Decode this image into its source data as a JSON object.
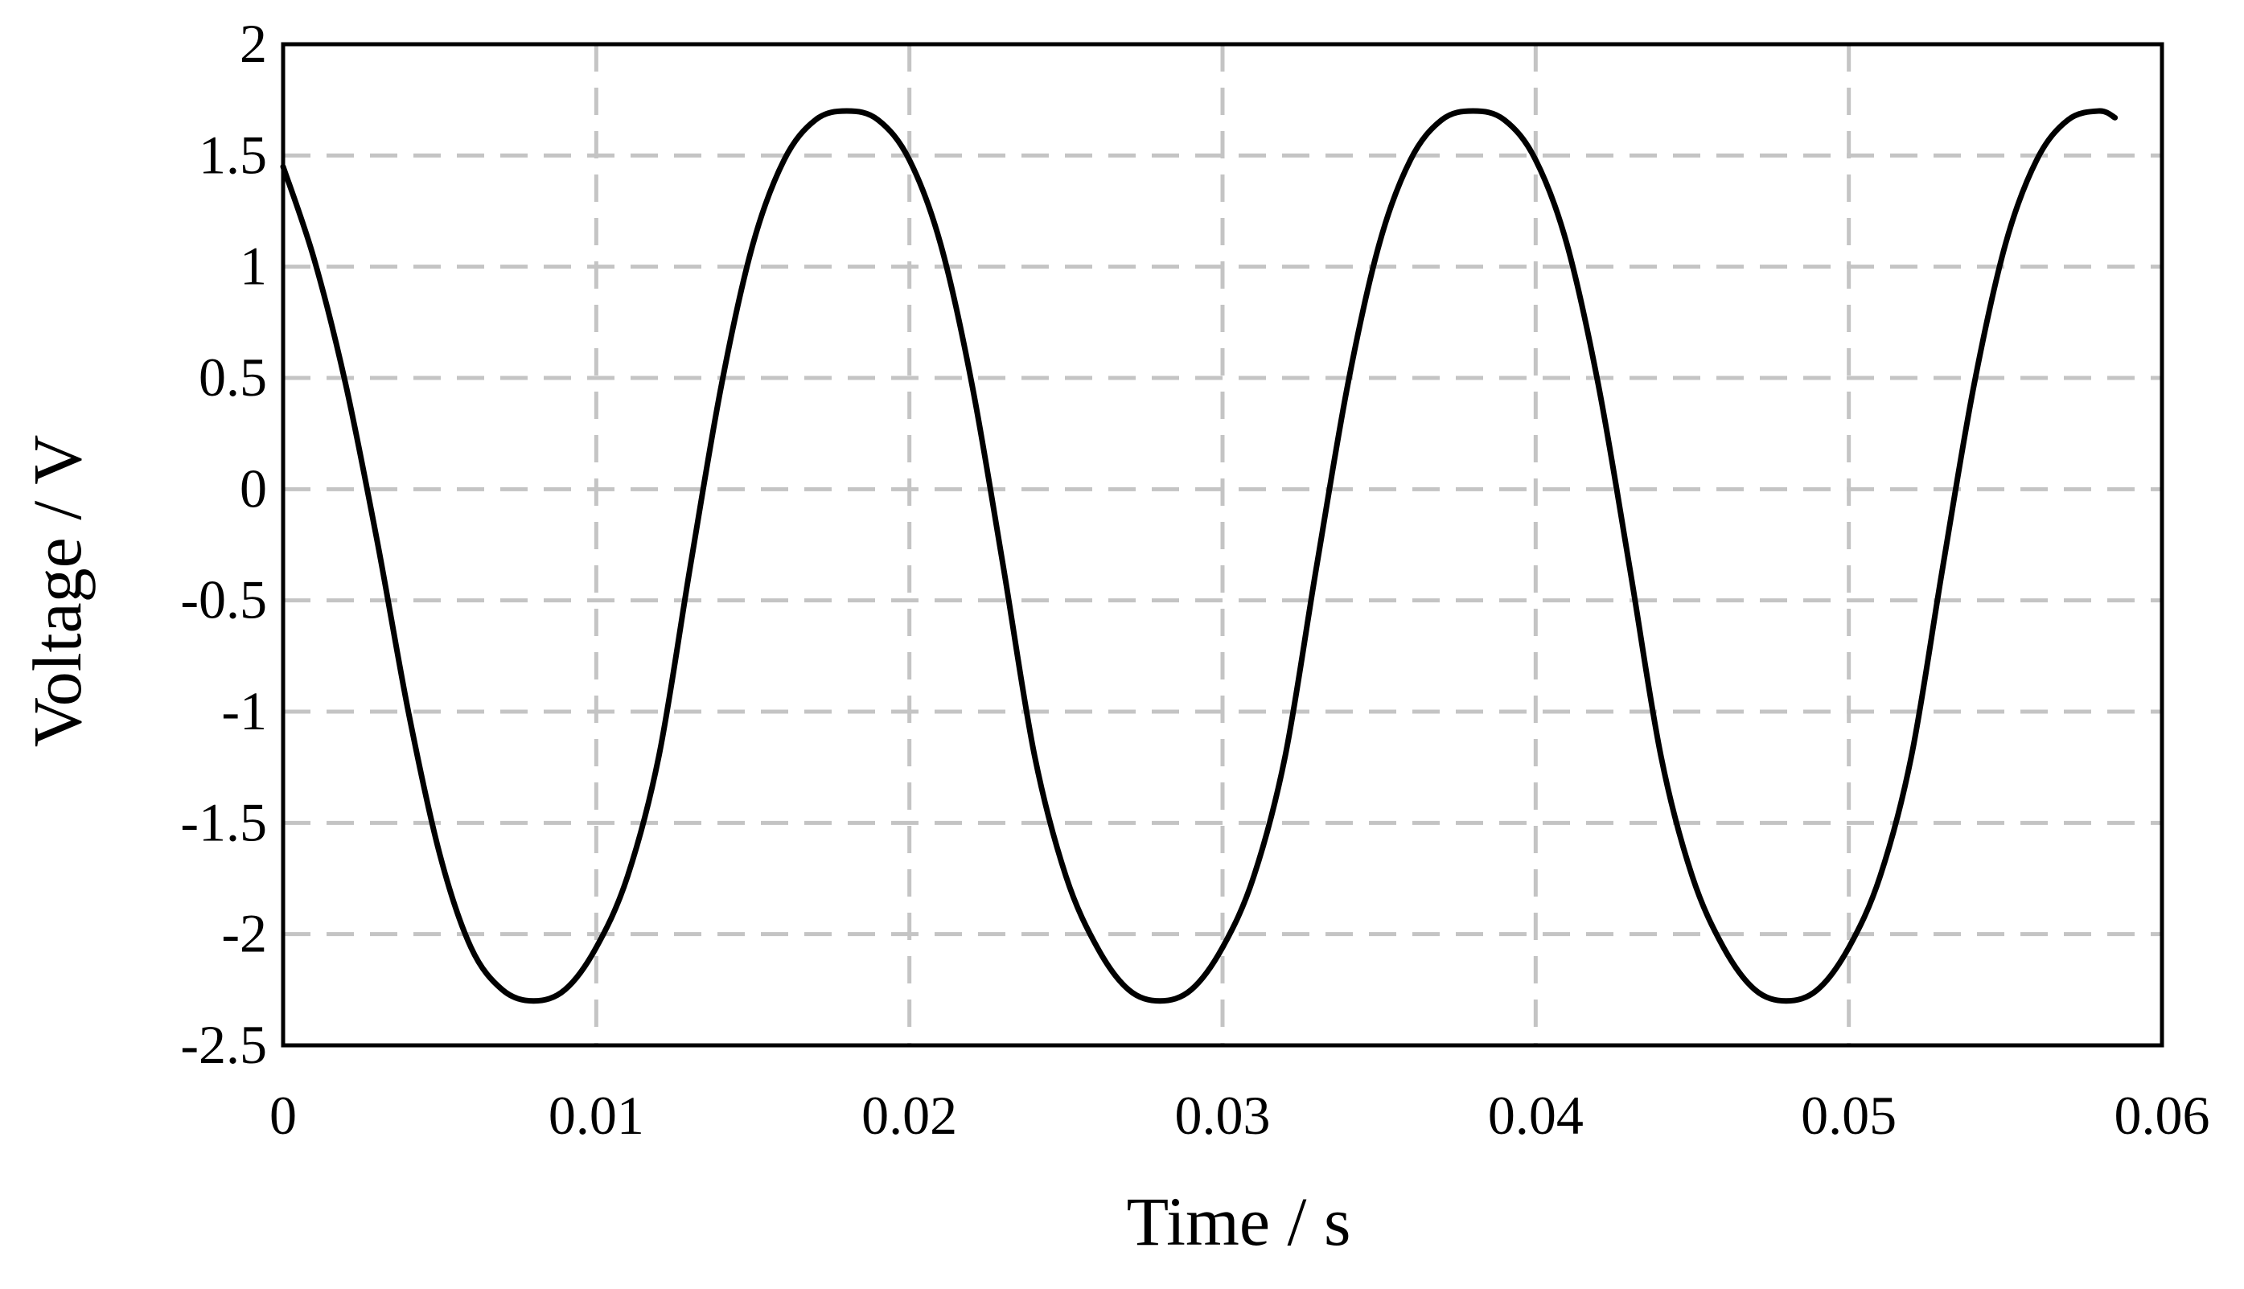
{
  "chart_data": {
    "type": "line",
    "title": "",
    "xlabel": "Time / s",
    "ylabel": "Voltage / V",
    "xlim": [
      0,
      0.06
    ],
    "ylim": [
      -2.5,
      2
    ],
    "xticks": [
      0,
      0.01,
      0.02,
      0.03,
      0.04,
      0.05,
      0.06
    ],
    "xtick_labels": [
      "0",
      "0.01",
      "0.02",
      "0.03",
      "0.04",
      "0.05",
      "0.06"
    ],
    "yticks": [
      2,
      1.5,
      1,
      0.5,
      0,
      -0.5,
      -1,
      -1.5,
      -2,
      -2.5
    ],
    "ytick_labels": [
      "2",
      "1.5",
      "1",
      "0.5",
      "0",
      "-0.5",
      "-1",
      "-1.5",
      "-2",
      "-2.5"
    ],
    "grid": true,
    "legend": "none",
    "line_color": "#000000",
    "grid_color": "#c4c4c4",
    "series": [
      {
        "x": [
          0,
          0.001,
          0.002,
          0.003,
          0.004,
          0.005,
          0.006,
          0.007,
          0.008,
          0.009,
          0.01,
          0.011,
          0.012,
          0.013,
          0.014,
          0.015,
          0.016,
          0.017,
          0.018,
          0.019,
          0.02,
          0.021,
          0.022,
          0.023,
          0.024,
          0.025,
          0.026,
          0.027,
          0.028,
          0.029,
          0.03,
          0.031,
          0.032,
          0.033,
          0.034,
          0.035,
          0.036,
          0.037,
          0.038,
          0.039,
          0.04,
          0.041,
          0.042,
          0.043,
          0.044,
          0.045,
          0.046,
          0.047,
          0.048,
          0.049,
          0.05,
          0.051,
          0.052,
          0.053,
          0.054,
          0.055,
          0.056,
          0.057,
          0.058,
          0.0585
        ],
        "y": [
          1.45,
          1.03,
          0.47,
          -0.23,
          -1.0,
          -1.64,
          -2.06,
          -2.25,
          -2.3,
          -2.25,
          -2.06,
          -1.74,
          -1.2,
          -0.35,
          0.47,
          1.1,
          1.48,
          1.66,
          1.7,
          1.66,
          1.48,
          1.1,
          0.47,
          -0.35,
          -1.2,
          -1.74,
          -2.06,
          -2.25,
          -2.3,
          -2.25,
          -2.06,
          -1.74,
          -1.2,
          -0.35,
          0.47,
          1.1,
          1.48,
          1.66,
          1.7,
          1.66,
          1.48,
          1.1,
          0.47,
          -0.35,
          -1.2,
          -1.74,
          -2.06,
          -2.25,
          -2.3,
          -2.25,
          -2.06,
          -1.74,
          -1.2,
          -0.35,
          0.47,
          1.1,
          1.48,
          1.66,
          1.7,
          1.67
        ]
      }
    ]
  }
}
